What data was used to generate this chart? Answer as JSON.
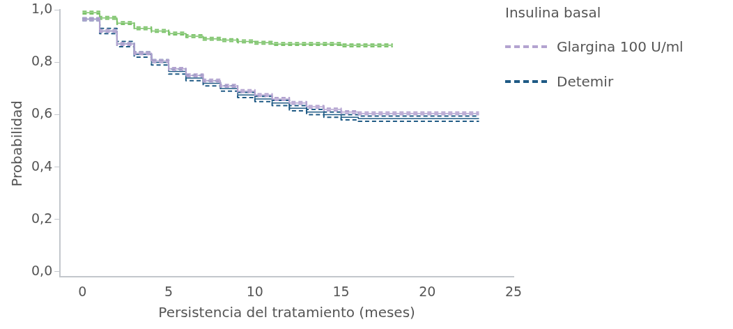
{
  "chart_data": {
    "type": "step",
    "xlabel": "Persistencia del tratamiento (meses)",
    "ylabel": "Probabilidad",
    "legend_title": "Insulina basal",
    "legend": "top right",
    "grid": false,
    "marker": "none",
    "xlim": [
      -1.3,
      25
    ],
    "xticks": [
      0,
      5,
      10,
      15,
      20,
      25
    ],
    "ylim": [
      -0.02,
      1.0
    ],
    "yticks": [
      {
        "value": 0,
        "label": "0,0"
      },
      {
        "value": 0.2,
        "label": "0,2"
      },
      {
        "value": 0.4,
        "label": "0,4"
      },
      {
        "value": 0.6,
        "label": "0,6"
      },
      {
        "value": 0.8,
        "label": "0,8"
      },
      {
        "value": 1,
        "label": "1,0"
      }
    ],
    "series": [
      {
        "name": "Glargina 100 U/ml",
        "color": "#b3a3d0",
        "line_style": "solid",
        "x": [
          0,
          1,
          2,
          3,
          4,
          5,
          6,
          7,
          8,
          9,
          10,
          11,
          12,
          13,
          14,
          15,
          16,
          17,
          18,
          19,
          20,
          21,
          22,
          23
        ],
        "values": [
          0.965,
          0.92,
          0.87,
          0.835,
          0.805,
          0.775,
          0.75,
          0.73,
          0.71,
          0.69,
          0.675,
          0.66,
          0.645,
          0.63,
          0.62,
          0.61,
          0.605,
          0.605,
          0.605,
          0.605,
          0.605,
          0.605,
          0.605,
          0.605
        ]
      },
      {
        "color": "#b3a3d0",
        "line_style": "dashed",
        "x": [
          0,
          1,
          2,
          3,
          4,
          5,
          6,
          7,
          8,
          9,
          10,
          11,
          12,
          13,
          14,
          15,
          16,
          17,
          18,
          19,
          20,
          21,
          22,
          23
        ],
        "values": [
          0.96,
          0.915,
          0.865,
          0.83,
          0.8,
          0.77,
          0.745,
          0.725,
          0.705,
          0.685,
          0.67,
          0.655,
          0.64,
          0.625,
          0.615,
          0.605,
          0.6,
          0.6,
          0.6,
          0.6,
          0.6,
          0.6,
          0.6,
          0.6
        ]
      },
      {
        "color": "#b3a3d0",
        "line_style": "dashed",
        "x": [
          0,
          1,
          2,
          3,
          4,
          5,
          6,
          7,
          8,
          9,
          10,
          11,
          12,
          13,
          14,
          15,
          16,
          17,
          18,
          19,
          20,
          21,
          22,
          23
        ],
        "values": [
          0.97,
          0.925,
          0.875,
          0.84,
          0.81,
          0.78,
          0.755,
          0.735,
          0.715,
          0.695,
          0.68,
          0.665,
          0.65,
          0.635,
          0.625,
          0.615,
          0.61,
          0.61,
          0.61,
          0.61,
          0.61,
          0.61,
          0.61,
          0.61
        ]
      },
      {
        "name": "Detemir",
        "color": "#1f5a85",
        "line_style": "solid",
        "x": [
          0,
          1,
          2,
          3,
          4,
          5,
          6,
          7,
          8,
          9,
          10,
          11,
          12,
          13,
          14,
          15,
          16,
          17,
          18,
          19,
          20,
          21,
          22,
          23
        ],
        "values": [
          0.965,
          0.92,
          0.87,
          0.83,
          0.8,
          0.765,
          0.74,
          0.72,
          0.7,
          0.675,
          0.66,
          0.645,
          0.625,
          0.61,
          0.6,
          0.59,
          0.585,
          0.585,
          0.585,
          0.585,
          0.585,
          0.585,
          0.585,
          0.585
        ]
      },
      {
        "color": "#1f5a85",
        "line_style": "dashed",
        "x": [
          0,
          1,
          2,
          3,
          4,
          5,
          6,
          7,
          8,
          9,
          10,
          11,
          12,
          13,
          14,
          15,
          16,
          17,
          18,
          19,
          20,
          21,
          22,
          23
        ],
        "values": [
          0.96,
          0.91,
          0.86,
          0.82,
          0.79,
          0.755,
          0.73,
          0.71,
          0.69,
          0.665,
          0.65,
          0.635,
          0.615,
          0.6,
          0.59,
          0.58,
          0.575,
          0.575,
          0.575,
          0.575,
          0.575,
          0.575,
          0.575,
          0.575
        ]
      },
      {
        "color": "#1f5a85",
        "line_style": "dashed",
        "x": [
          0,
          1,
          2,
          3,
          4,
          5,
          6,
          7,
          8,
          9,
          10,
          11,
          12,
          13,
          14,
          15,
          16,
          17,
          18,
          19,
          20,
          21,
          22,
          23
        ],
        "values": [
          0.97,
          0.93,
          0.88,
          0.84,
          0.81,
          0.775,
          0.75,
          0.73,
          0.71,
          0.685,
          0.67,
          0.655,
          0.635,
          0.62,
          0.61,
          0.6,
          0.595,
          0.595,
          0.595,
          0.595,
          0.595,
          0.595,
          0.595,
          0.595
        ]
      },
      {
        "color": "#7dc36b",
        "line_style": "solid",
        "x": [
          0,
          1,
          2,
          3,
          4,
          5,
          6,
          7,
          8,
          9,
          10,
          11,
          12,
          13,
          14,
          15,
          16,
          17,
          18
        ],
        "values": [
          0.99,
          0.97,
          0.95,
          0.93,
          0.92,
          0.91,
          0.9,
          0.89,
          0.885,
          0.88,
          0.875,
          0.87,
          0.87,
          0.87,
          0.87,
          0.865,
          0.865,
          0.865,
          0.865
        ]
      },
      {
        "color": "#7dc36b",
        "line_style": "dashed",
        "x": [
          0,
          1,
          2,
          3,
          4,
          5,
          6,
          7,
          8,
          9,
          10,
          11,
          12,
          13,
          14,
          15,
          16,
          17,
          18
        ],
        "values": [
          0.985,
          0.965,
          0.945,
          0.925,
          0.915,
          0.905,
          0.895,
          0.885,
          0.88,
          0.875,
          0.87,
          0.865,
          0.865,
          0.865,
          0.865,
          0.86,
          0.86,
          0.86,
          0.86
        ]
      },
      {
        "color": "#7dc36b",
        "line_style": "dashed",
        "x": [
          0,
          1,
          2,
          3,
          4,
          5,
          6,
          7,
          8,
          9,
          10,
          11,
          12,
          13,
          14,
          15,
          16,
          17,
          18
        ],
        "values": [
          0.995,
          0.975,
          0.955,
          0.935,
          0.925,
          0.915,
          0.905,
          0.895,
          0.89,
          0.885,
          0.88,
          0.875,
          0.875,
          0.875,
          0.875,
          0.87,
          0.87,
          0.87,
          0.87
        ]
      }
    ]
  }
}
